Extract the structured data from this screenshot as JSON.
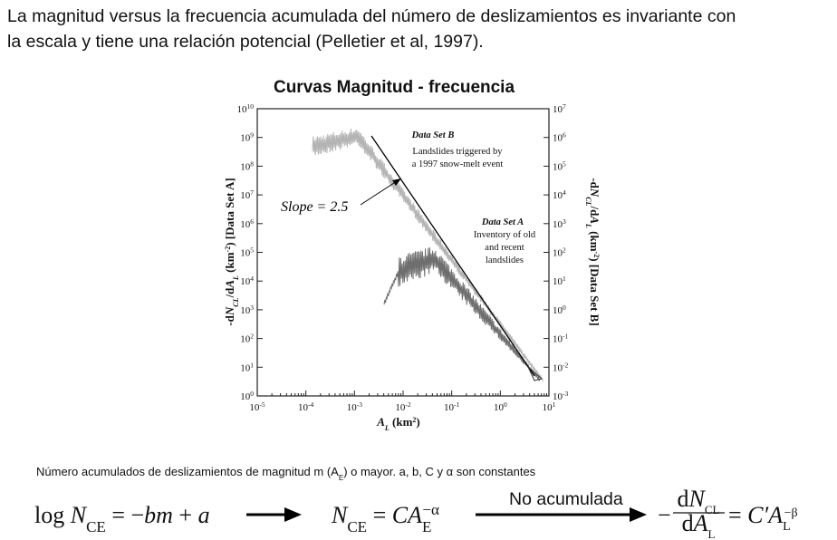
{
  "paragraph": {
    "line1": "La magnitud versus la frecuencia acumulada del número de deslizamientos es invariante con",
    "line2": "la escala y tiene una relación potencial (Pelletier et al, 1997)."
  },
  "figure": {
    "title": "Curvas Magnitud - frecuencia",
    "left_ticks": [
      {
        "base": "10",
        "exponent": "10"
      },
      {
        "base": "10",
        "exponent": "9"
      },
      {
        "base": "10",
        "exponent": "8"
      },
      {
        "base": "10",
        "exponent": "7"
      },
      {
        "base": "10",
        "exponent": "6"
      },
      {
        "base": "10",
        "exponent": "5"
      },
      {
        "base": "10",
        "exponent": "4"
      },
      {
        "base": "10",
        "exponent": "3"
      },
      {
        "base": "10",
        "exponent": "2"
      },
      {
        "base": "10",
        "exponent": "1"
      },
      {
        "base": "10",
        "exponent": "0"
      }
    ],
    "right_ticks": [
      {
        "base": "10",
        "exponent": "7"
      },
      {
        "base": "10",
        "exponent": "6"
      },
      {
        "base": "10",
        "exponent": "5"
      },
      {
        "base": "10",
        "exponent": "4"
      },
      {
        "base": "10",
        "exponent": "3"
      },
      {
        "base": "10",
        "exponent": "2"
      },
      {
        "base": "10",
        "exponent": "1"
      },
      {
        "base": "10",
        "exponent": "0"
      },
      {
        "base": "10",
        "exponent": "-1"
      },
      {
        "base": "10",
        "exponent": "-2"
      },
      {
        "base": "10",
        "exponent": "-3"
      }
    ],
    "x_ticks": [
      {
        "base": "10",
        "exponent": "-5"
      },
      {
        "base": "10",
        "exponent": "-4"
      },
      {
        "base": "10",
        "exponent": "-3"
      },
      {
        "base": "10",
        "exponent": "-2"
      },
      {
        "base": "10",
        "exponent": "-1"
      },
      {
        "base": "10",
        "exponent": "0"
      },
      {
        "base": "10",
        "exponent": "1"
      }
    ],
    "x_label": [
      "A",
      "L",
      " (km",
      "2",
      ")"
    ],
    "y_left_label": [
      "-d",
      "N",
      "CL",
      "/d",
      "A",
      "L",
      " (km",
      "-2",
      ") [Data Set A]"
    ],
    "y_right_label": [
      "-d",
      "N",
      "CL",
      "/d",
      "A",
      "L",
      " (km",
      "-2",
      ") [Data Set B]"
    ],
    "annotations": {
      "set_b": [
        "Data Set B",
        "Landslides triggered by",
        "a 1997 snow-melt event"
      ],
      "slope": "Slope = 2.5",
      "set_a": [
        "Data Set A",
        "Inventory of old",
        "and recent",
        "landslides"
      ]
    }
  },
  "note": [
    "Número acumulados de deslizamientos de magnitud m (A",
    "E",
    ") o mayor. a, b, C y α son constantes"
  ],
  "equations": {
    "cumulative_log": [
      "log ",
      "N",
      "CE",
      " = −",
      "bm",
      " + ",
      "a"
    ],
    "cumulative": [
      "N",
      "CE",
      " = ",
      "CA",
      "E",
      "−α"
    ],
    "arrow_label": "No acumulada",
    "non_cumulative": [
      "−",
      "d",
      "N",
      "CL",
      "d",
      "A",
      "L",
      " = ",
      "C′A",
      "L",
      "−β"
    ]
  }
}
